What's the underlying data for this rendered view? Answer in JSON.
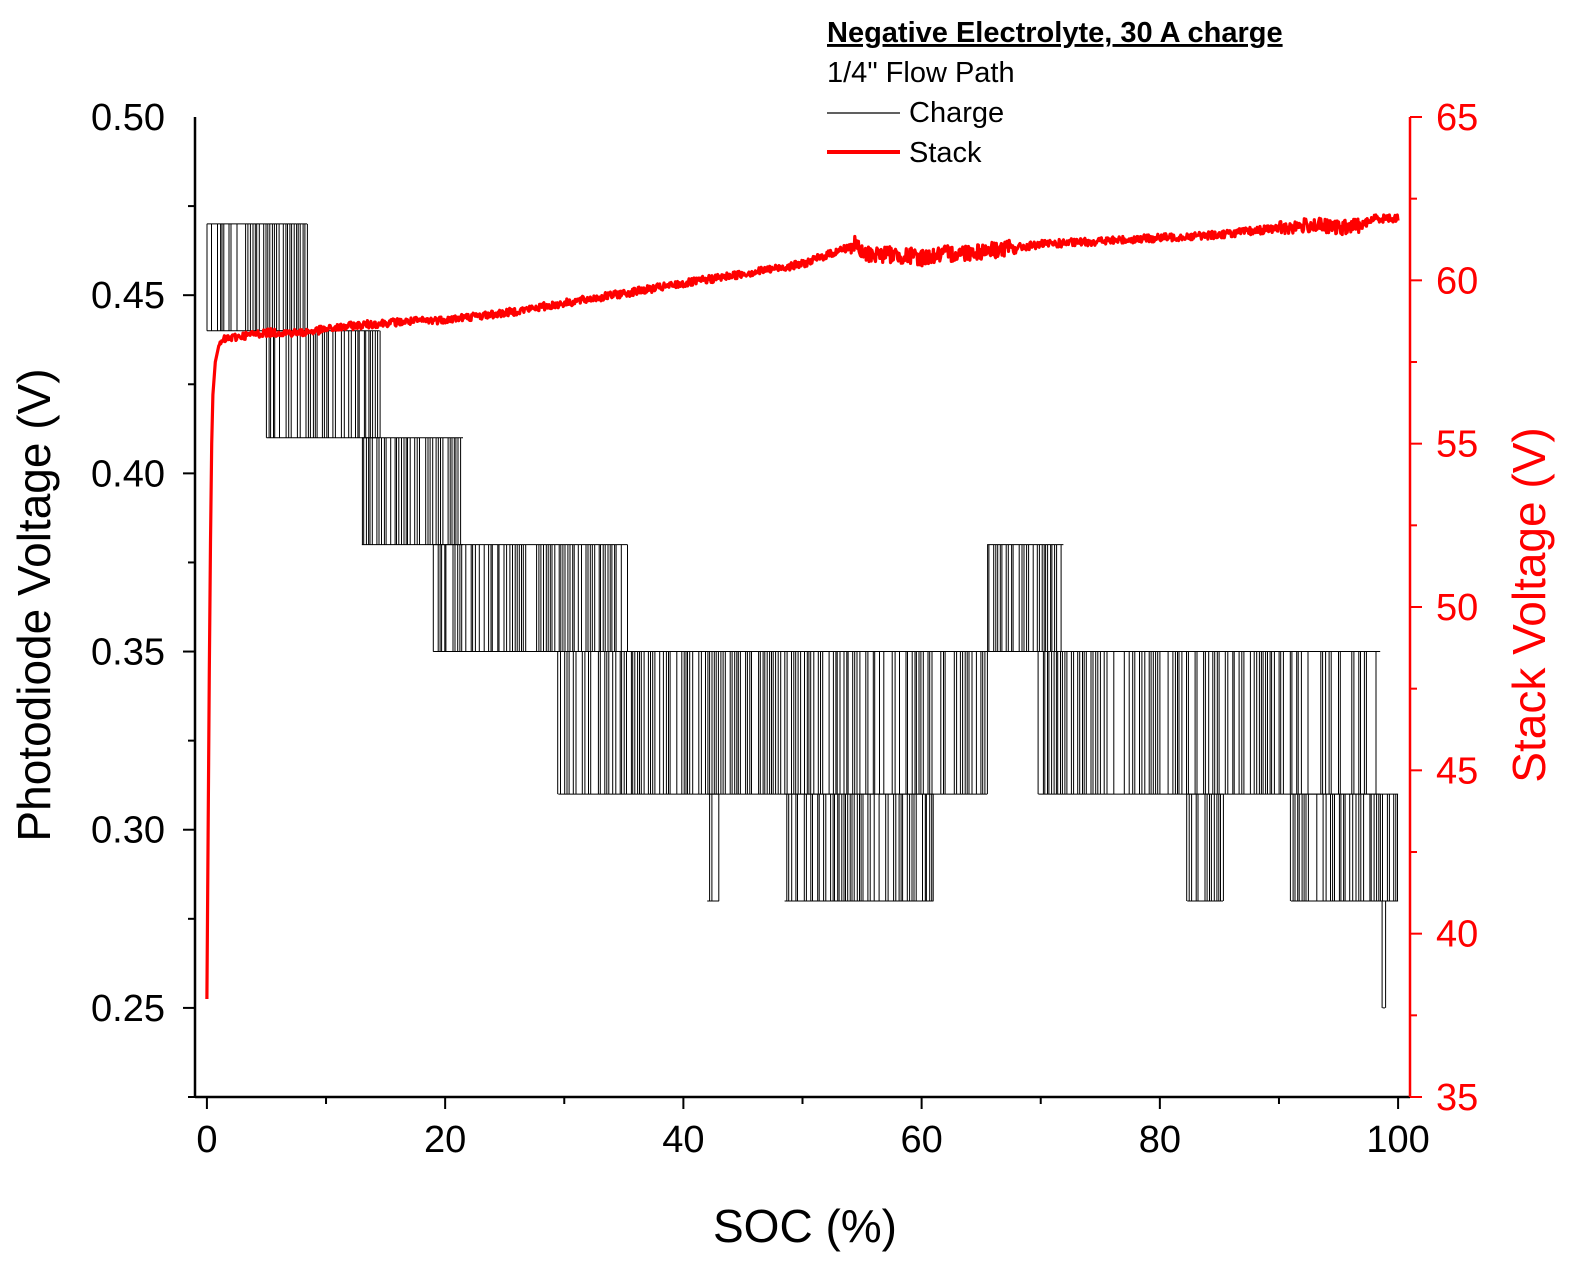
{
  "chart_data": {
    "type": "line",
    "title": "",
    "xlabel": "SOC (%)",
    "ylabel_left": "Photodiode Voltage (V)",
    "ylabel_right": "Stack Voltage (V)",
    "xlim": [
      -1,
      101
    ],
    "ylim_left": [
      0.225,
      0.5
    ],
    "ylim_right": [
      35,
      65
    ],
    "x_ticks": [
      0,
      20,
      40,
      60,
      80,
      100
    ],
    "x_tick_labels": [
      "0",
      "20",
      "40",
      "60",
      "80",
      "100"
    ],
    "y_left_ticks": [
      0.25,
      0.3,
      0.35,
      0.4,
      0.45,
      0.5
    ],
    "y_left_tick_labels": [
      "0.25",
      "0.30",
      "0.35",
      "0.40",
      "0.45",
      "0.50"
    ],
    "y_right_ticks": [
      35,
      40,
      45,
      50,
      55,
      60,
      65
    ],
    "y_right_tick_labels": [
      "35",
      "40",
      "45",
      "50",
      "55",
      "60",
      "65"
    ],
    "grid": false,
    "legend": {
      "position": "top-right",
      "title": "Negative Electrolyte, 30 A charge",
      "subtitle": "1/4\" Flow Path",
      "entries": [
        {
          "label": "Charge",
          "color": "#000000"
        },
        {
          "label": "Stack",
          "color": "#ff0000"
        }
      ]
    },
    "series": [
      {
        "name": "Charge",
        "axis": "left",
        "color": "#000000",
        "segments": [
          {
            "x_start": 0,
            "x_end": 7.5,
            "levels": [
              0.44,
              0.47
            ]
          },
          {
            "x_start": 7.5,
            "x_end": 8.4,
            "levels": [
              0.44,
              0.47
            ]
          },
          {
            "x_start": 5,
            "x_end": 14.5,
            "levels": [
              0.41,
              0.44
            ]
          },
          {
            "x_start": 13,
            "x_end": 21.5,
            "levels": [
              0.38,
              0.41
            ]
          },
          {
            "x_start": 19,
            "x_end": 35.3,
            "levels": [
              0.35,
              0.38
            ]
          },
          {
            "x_start": 29.5,
            "x_end": 65.5,
            "levels": [
              0.31,
              0.35
            ]
          },
          {
            "x_start": 42,
            "x_end": 43,
            "levels": [
              0.28,
              0.31
            ]
          },
          {
            "x_start": 48.5,
            "x_end": 61,
            "levels": [
              0.28,
              0.31
            ]
          },
          {
            "x_start": 65.5,
            "x_end": 71.9,
            "levels": [
              0.35,
              0.38
            ]
          },
          {
            "x_start": 69.8,
            "x_end": 98.5,
            "levels": [
              0.31,
              0.35
            ]
          },
          {
            "x_start": 82.3,
            "x_end": 85.3,
            "levels": [
              0.28,
              0.31
            ]
          },
          {
            "x_start": 91,
            "x_end": 100,
            "levels": [
              0.28,
              0.31
            ]
          },
          {
            "x_start": 98.7,
            "x_end": 98.9,
            "levels": [
              0.25,
              0.28
            ]
          }
        ]
      },
      {
        "name": "Stack",
        "axis": "right",
        "color": "#ff0000",
        "x": [
          0,
          0.1,
          0.2,
          0.3,
          0.4,
          0.5,
          0.7,
          1.0,
          1.5,
          3,
          5,
          8,
          10,
          12,
          15,
          20,
          25,
          30,
          35,
          40,
          45,
          50,
          53,
          54.5,
          55,
          57,
          60,
          62,
          65,
          68,
          70,
          75,
          80,
          85,
          90,
          93,
          95,
          97,
          98,
          100
        ],
        "y": [
          38,
          43,
          48,
          52,
          55,
          56.5,
          57.5,
          58.0,
          58.2,
          58.3,
          58.4,
          58.4,
          58.5,
          58.6,
          58.7,
          58.8,
          59.0,
          59.3,
          59.6,
          59.9,
          60.2,
          60.5,
          60.9,
          61.1,
          60.8,
          60.8,
          60.7,
          60.8,
          60.9,
          61.0,
          61.1,
          61.2,
          61.3,
          61.4,
          61.6,
          61.7,
          61.6,
          61.7,
          61.9,
          61.9
        ]
      }
    ]
  }
}
